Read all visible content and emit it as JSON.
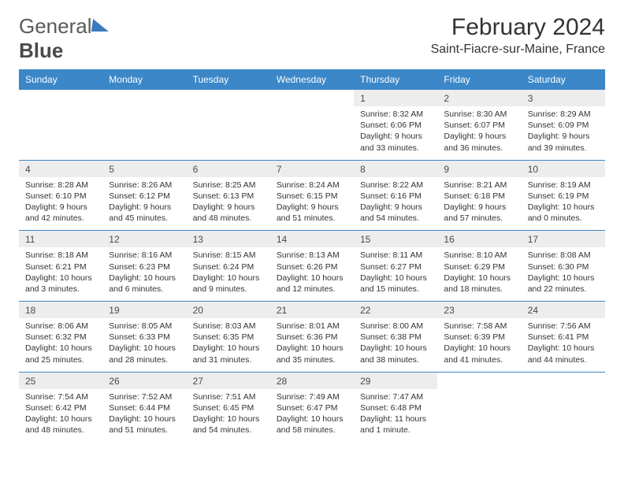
{
  "logo": {
    "word1": "General",
    "word2": "Blue"
  },
  "title": "February 2024",
  "location": "Saint-Fiacre-sur-Maine, France",
  "colors": {
    "header_bg": "#3b87c8",
    "header_text": "#ffffff",
    "daynum_bg": "#ededed",
    "rule": "#3b87c8",
    "text": "#333333"
  },
  "dayNames": [
    "Sunday",
    "Monday",
    "Tuesday",
    "Wednesday",
    "Thursday",
    "Friday",
    "Saturday"
  ],
  "weeks": [
    [
      null,
      null,
      null,
      null,
      {
        "n": "1",
        "sunrise": "8:32 AM",
        "sunset": "6:06 PM",
        "dl1": "Daylight: 9 hours",
        "dl2": "and 33 minutes."
      },
      {
        "n": "2",
        "sunrise": "8:30 AM",
        "sunset": "6:07 PM",
        "dl1": "Daylight: 9 hours",
        "dl2": "and 36 minutes."
      },
      {
        "n": "3",
        "sunrise": "8:29 AM",
        "sunset": "6:09 PM",
        "dl1": "Daylight: 9 hours",
        "dl2": "and 39 minutes."
      }
    ],
    [
      {
        "n": "4",
        "sunrise": "8:28 AM",
        "sunset": "6:10 PM",
        "dl1": "Daylight: 9 hours",
        "dl2": "and 42 minutes."
      },
      {
        "n": "5",
        "sunrise": "8:26 AM",
        "sunset": "6:12 PM",
        "dl1": "Daylight: 9 hours",
        "dl2": "and 45 minutes."
      },
      {
        "n": "6",
        "sunrise": "8:25 AM",
        "sunset": "6:13 PM",
        "dl1": "Daylight: 9 hours",
        "dl2": "and 48 minutes."
      },
      {
        "n": "7",
        "sunrise": "8:24 AM",
        "sunset": "6:15 PM",
        "dl1": "Daylight: 9 hours",
        "dl2": "and 51 minutes."
      },
      {
        "n": "8",
        "sunrise": "8:22 AM",
        "sunset": "6:16 PM",
        "dl1": "Daylight: 9 hours",
        "dl2": "and 54 minutes."
      },
      {
        "n": "9",
        "sunrise": "8:21 AM",
        "sunset": "6:18 PM",
        "dl1": "Daylight: 9 hours",
        "dl2": "and 57 minutes."
      },
      {
        "n": "10",
        "sunrise": "8:19 AM",
        "sunset": "6:19 PM",
        "dl1": "Daylight: 10 hours",
        "dl2": "and 0 minutes."
      }
    ],
    [
      {
        "n": "11",
        "sunrise": "8:18 AM",
        "sunset": "6:21 PM",
        "dl1": "Daylight: 10 hours",
        "dl2": "and 3 minutes."
      },
      {
        "n": "12",
        "sunrise": "8:16 AM",
        "sunset": "6:23 PM",
        "dl1": "Daylight: 10 hours",
        "dl2": "and 6 minutes."
      },
      {
        "n": "13",
        "sunrise": "8:15 AM",
        "sunset": "6:24 PM",
        "dl1": "Daylight: 10 hours",
        "dl2": "and 9 minutes."
      },
      {
        "n": "14",
        "sunrise": "8:13 AM",
        "sunset": "6:26 PM",
        "dl1": "Daylight: 10 hours",
        "dl2": "and 12 minutes."
      },
      {
        "n": "15",
        "sunrise": "8:11 AM",
        "sunset": "6:27 PM",
        "dl1": "Daylight: 10 hours",
        "dl2": "and 15 minutes."
      },
      {
        "n": "16",
        "sunrise": "8:10 AM",
        "sunset": "6:29 PM",
        "dl1": "Daylight: 10 hours",
        "dl2": "and 18 minutes."
      },
      {
        "n": "17",
        "sunrise": "8:08 AM",
        "sunset": "6:30 PM",
        "dl1": "Daylight: 10 hours",
        "dl2": "and 22 minutes."
      }
    ],
    [
      {
        "n": "18",
        "sunrise": "8:06 AM",
        "sunset": "6:32 PM",
        "dl1": "Daylight: 10 hours",
        "dl2": "and 25 minutes."
      },
      {
        "n": "19",
        "sunrise": "8:05 AM",
        "sunset": "6:33 PM",
        "dl1": "Daylight: 10 hours",
        "dl2": "and 28 minutes."
      },
      {
        "n": "20",
        "sunrise": "8:03 AM",
        "sunset": "6:35 PM",
        "dl1": "Daylight: 10 hours",
        "dl2": "and 31 minutes."
      },
      {
        "n": "21",
        "sunrise": "8:01 AM",
        "sunset": "6:36 PM",
        "dl1": "Daylight: 10 hours",
        "dl2": "and 35 minutes."
      },
      {
        "n": "22",
        "sunrise": "8:00 AM",
        "sunset": "6:38 PM",
        "dl1": "Daylight: 10 hours",
        "dl2": "and 38 minutes."
      },
      {
        "n": "23",
        "sunrise": "7:58 AM",
        "sunset": "6:39 PM",
        "dl1": "Daylight: 10 hours",
        "dl2": "and 41 minutes."
      },
      {
        "n": "24",
        "sunrise": "7:56 AM",
        "sunset": "6:41 PM",
        "dl1": "Daylight: 10 hours",
        "dl2": "and 44 minutes."
      }
    ],
    [
      {
        "n": "25",
        "sunrise": "7:54 AM",
        "sunset": "6:42 PM",
        "dl1": "Daylight: 10 hours",
        "dl2": "and 48 minutes."
      },
      {
        "n": "26",
        "sunrise": "7:52 AM",
        "sunset": "6:44 PM",
        "dl1": "Daylight: 10 hours",
        "dl2": "and 51 minutes."
      },
      {
        "n": "27",
        "sunrise": "7:51 AM",
        "sunset": "6:45 PM",
        "dl1": "Daylight: 10 hours",
        "dl2": "and 54 minutes."
      },
      {
        "n": "28",
        "sunrise": "7:49 AM",
        "sunset": "6:47 PM",
        "dl1": "Daylight: 10 hours",
        "dl2": "and 58 minutes."
      },
      {
        "n": "29",
        "sunrise": "7:47 AM",
        "sunset": "6:48 PM",
        "dl1": "Daylight: 11 hours",
        "dl2": "and 1 minute."
      },
      null,
      null
    ]
  ],
  "labels": {
    "sunrise": "Sunrise: ",
    "sunset": "Sunset: "
  }
}
